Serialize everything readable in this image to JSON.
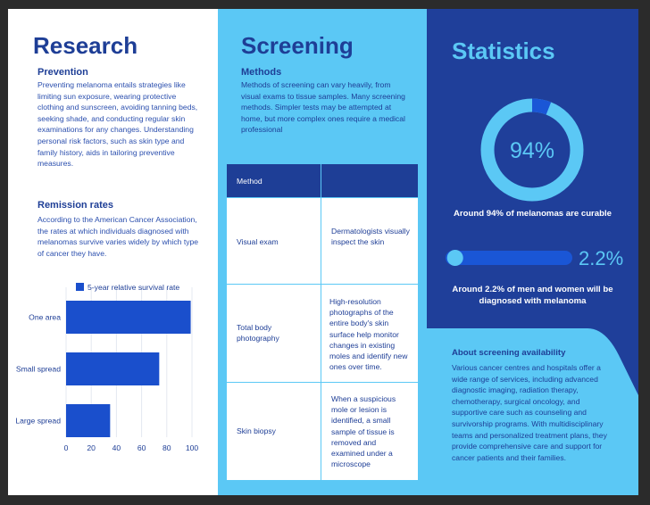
{
  "research": {
    "title": "Research",
    "prevention": {
      "heading": "Prevention",
      "text": "Preventing melanoma entails strategies like limiting sun exposure, wearing protective clothing and sunscreen, avoiding tanning beds, seeking shade, and conducting regular skin examinations for any changes. Understanding personal risk factors, such as skin type and family history, aids in tailoring preventive measures."
    },
    "remission": {
      "heading": "Remission rates",
      "text": "According to the American Cancer Association, the rates at which individuals diagnosed with melanomas survive varies widely by which type of cancer they have."
    }
  },
  "chart_data": {
    "type": "bar",
    "orientation": "horizontal",
    "categories": [
      "One area",
      "Small spread",
      "Large spread"
    ],
    "series": [
      {
        "name": "5-year relative survival rate",
        "values": [
          99,
          74,
          35
        ]
      }
    ],
    "xlim": [
      0,
      100
    ],
    "xticks": [
      "0",
      "20",
      "40",
      "60",
      "80",
      "100"
    ],
    "grid": "vertical",
    "legend": "top",
    "colors": {
      "bar": "#1a4fcc",
      "grid": "#e4e8f0",
      "label": "#1e3e96"
    }
  },
  "screening": {
    "title": "Screening",
    "methods": {
      "heading": "Methods",
      "text": "Methods of screening can vary heavily, from visual exams to tissue samples. Many screening methods. Simpler tests may be attempted at home, but more complex ones require a medical professional"
    },
    "table": {
      "headers": [
        "Method",
        ""
      ],
      "rows": [
        {
          "method": "Visual exam",
          "description": "Dermatologists visually inspect the skin"
        },
        {
          "method": "Total body photography",
          "description": " High-resolution photographs of the entire body's skin surface help monitor changes in existing moles and identify new ones over time."
        },
        {
          "method": "Skin biopsy",
          "description": "When a suspicious mole or lesion is identified, a small sample of tissue is removed and examined under a microscope"
        }
      ]
    }
  },
  "statistics": {
    "title": "Statistics",
    "ring": {
      "value": 94,
      "label": "94%"
    },
    "stat1": "Around 94% of melanomas are curable",
    "bar": {
      "value": 2.2,
      "label": "2.2%"
    },
    "stat2": "Around 2.2% of men and women will be diagnosed with melanoma",
    "about": {
      "heading": "About screening availability",
      "text": "Various cancer centres and hospitals offer a wide range of services, including advanced diagnostic imaging, radiation therapy, chemotherapy, surgical oncology, and supportive care such as counseling and survivorship programs. With multidisciplinary teams and personalized treatment plans, they provide comprehensive care and support for cancer patients and their families."
    }
  },
  "colors": {
    "navy": "#1e3e96",
    "sky": "#5bc8f5",
    "royal": "#1f3f9a",
    "white": "#ffffff"
  }
}
